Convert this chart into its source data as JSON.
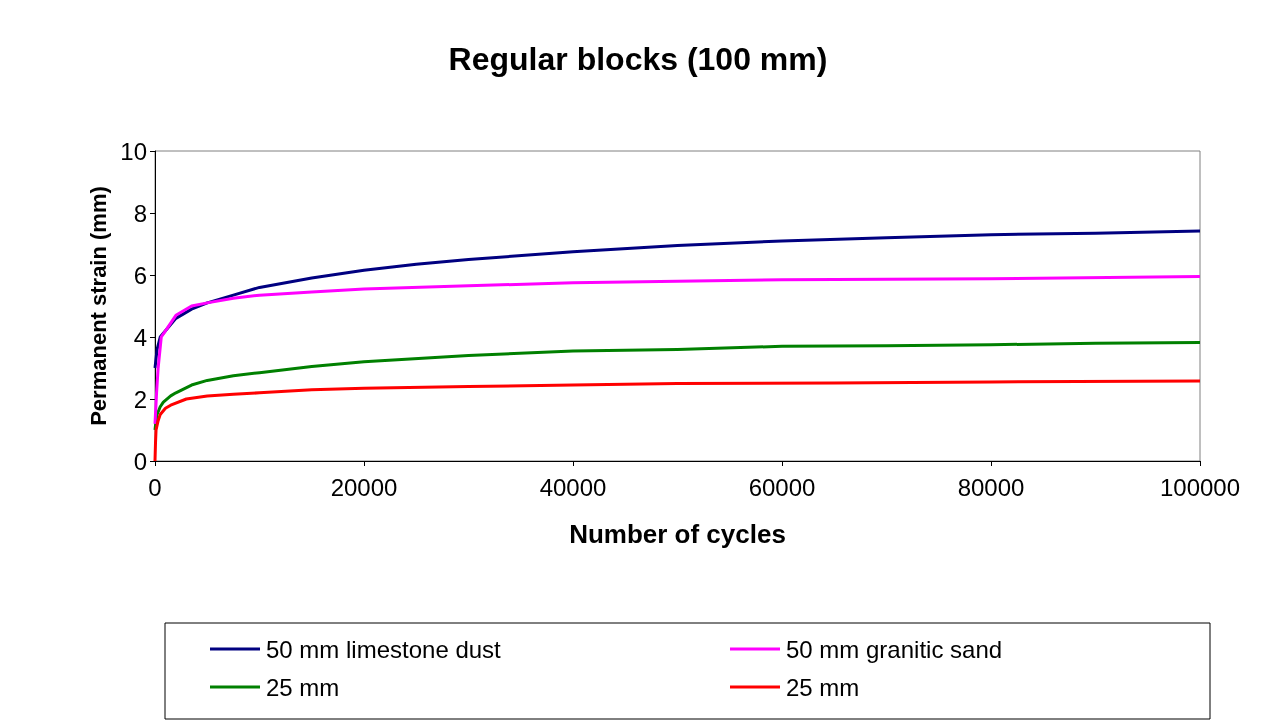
{
  "chart_data": {
    "type": "line",
    "title": "Regular blocks (100 mm)",
    "xlabel": "Number of cycles",
    "ylabel": "Permanent strain (mm)",
    "xlim": [
      0,
      100000
    ],
    "xticks": [
      0,
      20000,
      40000,
      60000,
      80000,
      100000
    ],
    "ylim": [
      0,
      10
    ],
    "yticks": [
      0,
      2,
      4,
      6,
      8,
      10
    ],
    "grid": false,
    "legend": "bottom",
    "marker": "none",
    "line_style": "solid",
    "series": [
      {
        "name": "50 mm limestone dust",
        "color": "#000080",
        "x": [
          0,
          200,
          500,
          1000,
          2000,
          3500,
          5000,
          7500,
          10000,
          15000,
          20000,
          25000,
          30000,
          40000,
          50000,
          60000,
          70000,
          80000,
          90000,
          100000
        ],
        "values": [
          3.0,
          3.6,
          4.0,
          4.2,
          4.6,
          4.9,
          5.1,
          5.35,
          5.6,
          5.9,
          6.15,
          6.35,
          6.5,
          6.75,
          6.95,
          7.1,
          7.2,
          7.3,
          7.35,
          7.42
        ]
      },
      {
        "name": "25 mm",
        "color": "#008000",
        "x": [
          0,
          100,
          200,
          500,
          800,
          1500,
          2000,
          3500,
          5000,
          7500,
          10000,
          15000,
          20000,
          30000,
          40000,
          50000,
          60000,
          70000,
          80000,
          90000,
          100000
        ],
        "values": [
          1.0,
          1.3,
          1.5,
          1.75,
          1.9,
          2.1,
          2.2,
          2.45,
          2.6,
          2.75,
          2.85,
          3.05,
          3.2,
          3.4,
          3.55,
          3.6,
          3.7,
          3.72,
          3.75,
          3.8,
          3.82
        ]
      },
      {
        "name": "50 mm granitic sand",
        "color": "#ff00ff",
        "x": [
          0,
          150,
          300,
          600,
          1000,
          2000,
          3500,
          5000,
          7500,
          10000,
          15000,
          20000,
          30000,
          40000,
          50000,
          60000,
          80000,
          100000
        ],
        "values": [
          1.2,
          2.2,
          3.0,
          4.0,
          4.2,
          4.7,
          5.0,
          5.1,
          5.25,
          5.35,
          5.45,
          5.55,
          5.65,
          5.75,
          5.8,
          5.85,
          5.88,
          5.95
        ]
      },
      {
        "name": "25 mm",
        "color": "#ff0000",
        "x": [
          0,
          50,
          100,
          300,
          500,
          1000,
          1500,
          3000,
          5000,
          7500,
          10000,
          15000,
          20000,
          30000,
          40000,
          50000,
          65000,
          80000,
          100000
        ],
        "values": [
          0,
          0.6,
          1.0,
          1.3,
          1.5,
          1.7,
          1.8,
          2.0,
          2.1,
          2.15,
          2.2,
          2.3,
          2.35,
          2.4,
          2.45,
          2.5,
          2.52,
          2.55,
          2.58
        ]
      }
    ]
  }
}
